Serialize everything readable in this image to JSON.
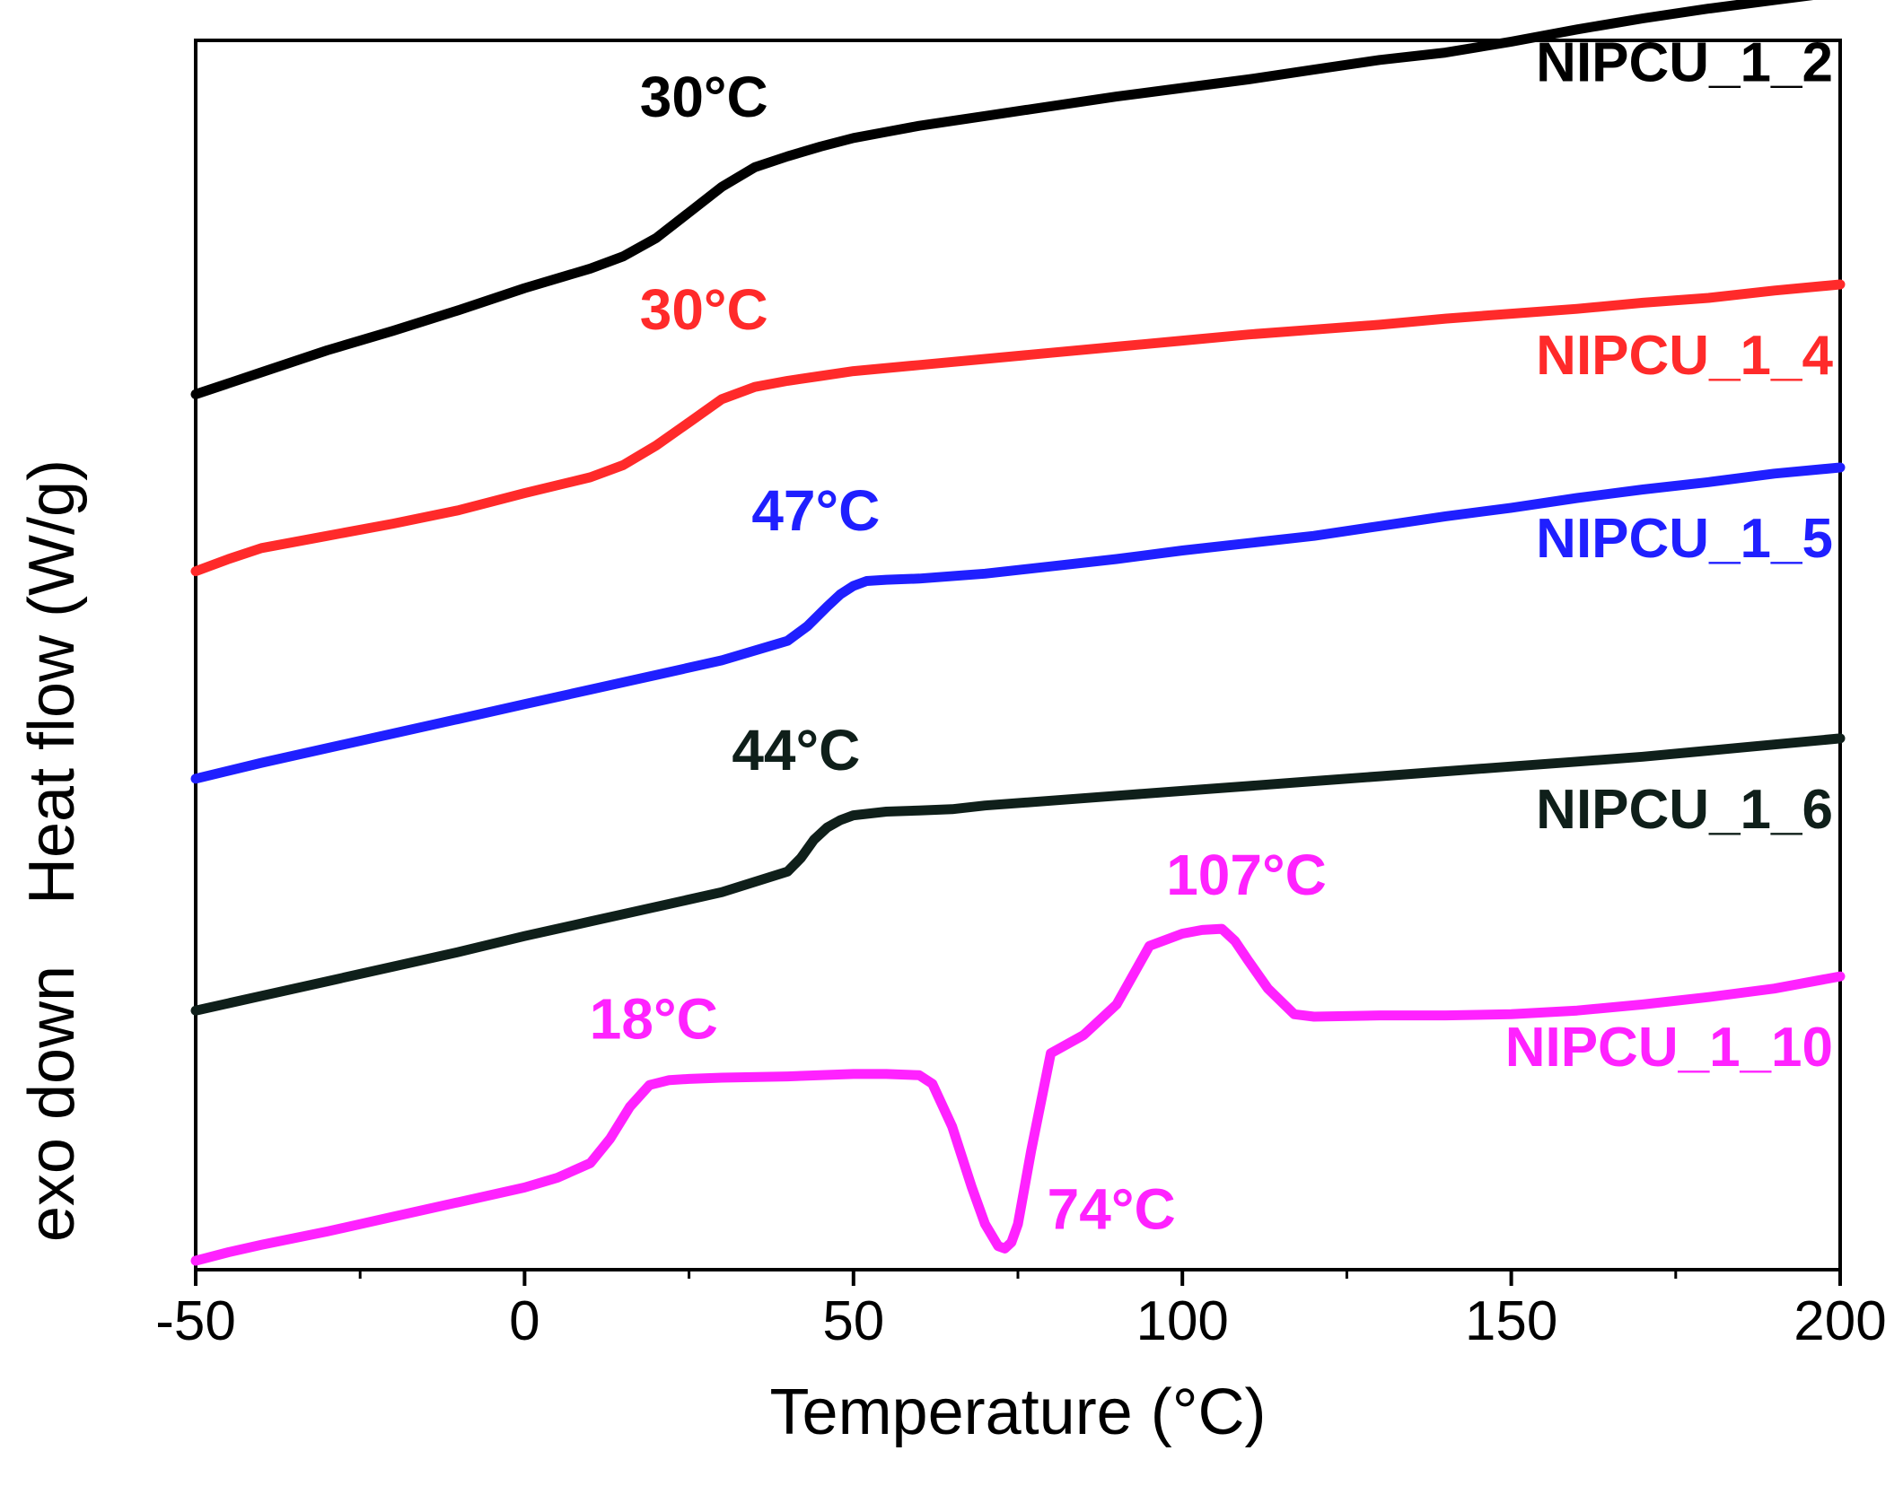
{
  "chart_data": {
    "type": "line",
    "title": "",
    "xlabel": "Temperature (°C)",
    "ylabel": "Heat flow (W/g)",
    "ylabel_secondary": "exo down",
    "xlim": [
      -50,
      200
    ],
    "xticks": [
      -50,
      0,
      50,
      100,
      150,
      200
    ],
    "xtick_labels": [
      "-50",
      "0",
      "50",
      "100",
      "150",
      "200"
    ],
    "ylim": [
      0,
      100
    ],
    "yticks_shown": false,
    "grid": false,
    "legend": "none",
    "series": [
      {
        "name": "NIPCU_1_2",
        "color": "#000000",
        "label_position": "right",
        "annotation": {
          "text": "30°C",
          "x": 30
        },
        "x": [
          -50,
          -40,
          -30,
          -20,
          -10,
          0,
          10,
          15,
          20,
          25,
          30,
          35,
          40,
          45,
          50,
          55,
          60,
          70,
          80,
          90,
          100,
          110,
          120,
          130,
          140,
          150,
          160,
          170,
          180,
          190,
          200
        ],
        "y": [
          71,
          72.8,
          74.6,
          76.2,
          77.9,
          79.7,
          81.3,
          82.3,
          83.8,
          85.9,
          88,
          89.6,
          90.5,
          91.3,
          92,
          92.5,
          93,
          93.8,
          94.6,
          95.4,
          96.1,
          96.8,
          97.6,
          98.4,
          99,
          99.9,
          100.9,
          101.8,
          102.6,
          103.3,
          104
        ]
      },
      {
        "name": "NIPCU_1_4",
        "color": "#ff2a2a",
        "label_position": "right",
        "annotation": {
          "text": "30°C",
          "x": 30
        },
        "x": [
          -50,
          -45,
          -40,
          -30,
          -20,
          -10,
          0,
          10,
          15,
          20,
          25,
          30,
          35,
          40,
          45,
          50,
          60,
          70,
          80,
          90,
          100,
          110,
          120,
          130,
          140,
          150,
          160,
          170,
          180,
          190,
          200
        ],
        "y": [
          56.5,
          57.5,
          58.4,
          59.4,
          60.4,
          61.5,
          62.9,
          64.2,
          65.2,
          66.8,
          68.7,
          70.6,
          71.6,
          72.1,
          72.5,
          72.9,
          73.4,
          73.9,
          74.4,
          74.9,
          75.4,
          75.9,
          76.3,
          76.7,
          77.2,
          77.6,
          78,
          78.5,
          78.9,
          79.5,
          80
        ]
      },
      {
        "name": "NIPCU_1_5",
        "color": "#1f1fff",
        "label_position": "right",
        "annotation": {
          "text": "47°C",
          "x": 47
        },
        "x": [
          -50,
          -40,
          -30,
          -20,
          -10,
          0,
          10,
          20,
          30,
          40,
          43,
          46,
          48,
          50,
          52,
          55,
          60,
          70,
          80,
          90,
          100,
          110,
          120,
          130,
          140,
          150,
          160,
          170,
          180,
          190,
          200
        ],
        "y": [
          39.5,
          40.8,
          42,
          43.2,
          44.4,
          45.6,
          46.8,
          48,
          49.2,
          50.8,
          52,
          53.6,
          54.6,
          55.3,
          55.7,
          55.8,
          55.9,
          56.3,
          56.9,
          57.5,
          58.2,
          58.8,
          59.4,
          60.2,
          61,
          61.7,
          62.5,
          63.2,
          63.8,
          64.5,
          65
        ]
      },
      {
        "name": "NIPCU_1_6",
        "color": "#0f1f1a",
        "label_position": "right",
        "annotation": {
          "text": "44°C",
          "x": 44
        },
        "x": [
          -50,
          -40,
          -30,
          -20,
          -10,
          0,
          10,
          20,
          30,
          40,
          42,
          44,
          46,
          48,
          50,
          55,
          60,
          65,
          70,
          80,
          90,
          100,
          110,
          120,
          130,
          140,
          150,
          160,
          170,
          180,
          190,
          200
        ],
        "y": [
          20.5,
          21.7,
          22.9,
          24.1,
          25.3,
          26.6,
          27.8,
          29,
          30.2,
          31.9,
          33,
          34.5,
          35.5,
          36.1,
          36.5,
          36.8,
          36.9,
          37,
          37.3,
          37.7,
          38.1,
          38.5,
          38.9,
          39.3,
          39.7,
          40.1,
          40.5,
          40.9,
          41.3,
          41.8,
          42.3,
          42.8
        ]
      },
      {
        "name": "NIPCU_1_10",
        "color": "#ff22ff",
        "label_position": "right",
        "annotations": [
          {
            "text": "18°C",
            "x": 18
          },
          {
            "text": "74°C",
            "x": 74
          },
          {
            "text": "107°C",
            "x": 107
          }
        ],
        "x": [
          -50,
          -45,
          -40,
          -30,
          -20,
          -10,
          0,
          5,
          10,
          13,
          16,
          19,
          22,
          25,
          30,
          40,
          50,
          55,
          60,
          62,
          65,
          68,
          70,
          72,
          73,
          74,
          75,
          77,
          80,
          85,
          90,
          95,
          100,
          103,
          106,
          108,
          110,
          113,
          117,
          120,
          130,
          140,
          150,
          160,
          170,
          180,
          190,
          200
        ],
        "y": [
          0,
          0.7,
          1.3,
          2.4,
          3.6,
          4.8,
          6,
          6.8,
          8,
          10,
          12.6,
          14.4,
          14.8,
          14.9,
          15,
          15.1,
          15.3,
          15.3,
          15.2,
          14.5,
          11,
          6,
          3,
          1.2,
          1,
          1.5,
          3,
          9,
          17,
          18.5,
          21,
          25.8,
          26.8,
          27.1,
          27.2,
          26.2,
          24.6,
          22.3,
          20.2,
          20,
          20.1,
          20.1,
          20.2,
          20.5,
          21,
          21.6,
          22.3,
          23.3
        ]
      }
    ]
  }
}
